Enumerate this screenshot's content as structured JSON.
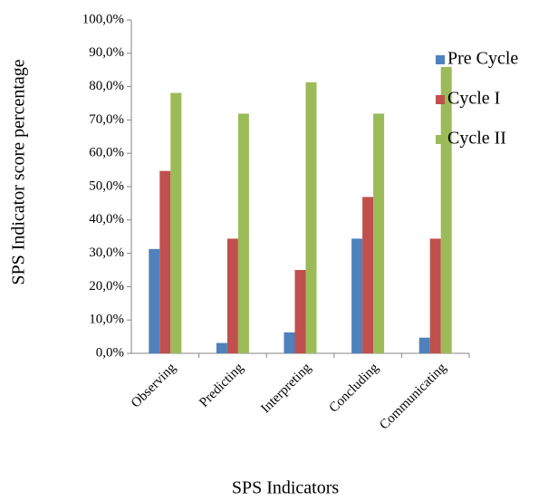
{
  "chart_data": {
    "type": "bar",
    "y_axis_label": "SPS Indicator score percentage",
    "x_axis_label": "SPS Indicators",
    "categories": [
      "Observing",
      "Predicting",
      "Interpreting",
      "Concluding",
      "Communicating"
    ],
    "series": [
      {
        "name": "Pre Cycle",
        "color": "#4f81bd",
        "values": [
          31.3,
          3.1,
          6.3,
          34.4,
          4.7
        ]
      },
      {
        "name": "Cycle I",
        "color": "#c0504d",
        "values": [
          54.7,
          34.4,
          25.0,
          46.9,
          34.4
        ]
      },
      {
        "name": "Cycle II",
        "color": "#9bbb59",
        "values": [
          78.1,
          71.9,
          81.3,
          71.9,
          85.9
        ]
      }
    ],
    "ylim": [
      0,
      100
    ],
    "yticks": [
      {
        "value": 0,
        "label": "0,0%"
      },
      {
        "value": 10,
        "label": "10,0%"
      },
      {
        "value": 20,
        "label": "20,0%"
      },
      {
        "value": 30,
        "label": "30,0%"
      },
      {
        "value": 40,
        "label": "40,0%"
      },
      {
        "value": 50,
        "label": "50,0%"
      },
      {
        "value": 60,
        "label": "60,0%"
      },
      {
        "value": 70,
        "label": "70,0%"
      },
      {
        "value": 80,
        "label": "80,0%"
      },
      {
        "value": 90,
        "label": "90,0%"
      },
      {
        "value": 100,
        "label": "100,0%"
      }
    ],
    "grid": false,
    "legend": "right"
  }
}
